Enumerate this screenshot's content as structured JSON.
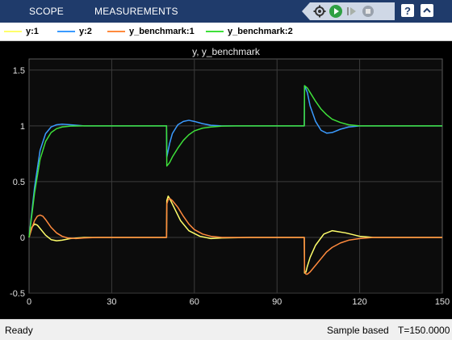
{
  "topbar": {
    "tabs": [
      {
        "label": "SCOPE"
      },
      {
        "label": "MEASUREMENTS"
      }
    ],
    "quick_access_icons": [
      "settings-gear-icon",
      "run-icon",
      "step-forward-icon",
      "stop-icon"
    ],
    "help_icons": [
      "help-icon",
      "expand-icon"
    ]
  },
  "legend": {
    "items": [
      {
        "label": "y:1",
        "color": "#ffff6b"
      },
      {
        "label": "y:2",
        "color": "#3b9bff"
      },
      {
        "label": "y_benchmark:1",
        "color": "#ff8a3d"
      },
      {
        "label": "y_benchmark:2",
        "color": "#3ee03a"
      }
    ]
  },
  "chart_data": {
    "type": "line",
    "title": "y, y_benchmark",
    "xlabel": "",
    "ylabel": "",
    "xlim": [
      0,
      150
    ],
    "ylim": [
      -0.5,
      1.6
    ],
    "xticks": [
      0,
      30,
      60,
      90,
      120,
      150
    ],
    "yticks": [
      -0.5,
      0,
      0.5,
      1,
      1.5
    ],
    "xtick_labels": [
      "0",
      "30",
      "60",
      "90",
      "120",
      "150"
    ],
    "ytick_labels": [
      "-0.5",
      "0",
      "0.5",
      "1",
      "1.5"
    ],
    "grid": true,
    "legend_position": "top",
    "series": [
      {
        "name": "y:1",
        "color": "#ffff6b",
        "x": [
          0,
          1,
          2,
          3,
          4,
          6,
          8,
          10,
          12,
          15,
          20,
          25,
          30,
          40,
          49.9,
          50,
          50.5,
          51,
          53,
          55,
          58,
          62,
          66,
          70,
          80,
          99.9,
          100,
          100.5,
          101,
          102,
          104,
          107,
          110,
          115,
          120,
          125,
          130,
          150
        ],
        "y": [
          0,
          0.09,
          0.12,
          0.11,
          0.08,
          0.02,
          -0.02,
          -0.03,
          -0.025,
          -0.01,
          0,
          0,
          0,
          0,
          0,
          0.33,
          0.37,
          0.35,
          0.25,
          0.15,
          0.06,
          0.01,
          -0.01,
          -0.005,
          0,
          0,
          -0.32,
          -0.31,
          -0.26,
          -0.18,
          -0.07,
          0.03,
          0.06,
          0.04,
          0.01,
          0,
          0,
          0
        ]
      },
      {
        "name": "y:2",
        "color": "#3b9bff",
        "x": [
          0,
          2,
          4,
          6,
          8,
          10,
          12,
          15,
          20,
          25,
          30,
          40,
          49.9,
          50,
          51,
          52,
          54,
          56,
          58,
          60,
          63,
          66,
          70,
          75,
          80,
          99.9,
          100,
          101,
          102,
          104,
          106,
          108,
          110,
          113,
          116,
          120,
          125,
          130,
          150
        ],
        "y": [
          0,
          0.45,
          0.78,
          0.93,
          0.99,
          1.01,
          1.015,
          1.01,
          1.0,
          1.0,
          1.0,
          1.0,
          1.0,
          0.72,
          0.84,
          0.93,
          1.01,
          1.04,
          1.05,
          1.04,
          1.02,
          1.005,
          1.0,
          1.0,
          1.0,
          1.0,
          1.36,
          1.3,
          1.18,
          1.04,
          0.96,
          0.935,
          0.94,
          0.97,
          0.99,
          1.0,
          1.0,
          1.0,
          1.0
        ]
      },
      {
        "name": "y_benchmark:1",
        "color": "#ff8a3d",
        "x": [
          0,
          1,
          2,
          3,
          4,
          5,
          6,
          8,
          10,
          12,
          14,
          17,
          20,
          25,
          30,
          49.9,
          50,
          50.5,
          51,
          52,
          54,
          56,
          58,
          60,
          63,
          66,
          70,
          80,
          99.9,
          100,
          100.5,
          101,
          102,
          104,
          106,
          108,
          110,
          113,
          116,
          120,
          125,
          130,
          150
        ],
        "y": [
          0,
          0.08,
          0.15,
          0.19,
          0.2,
          0.19,
          0.16,
          0.09,
          0.04,
          0.01,
          -0.005,
          -0.01,
          -0.005,
          0,
          0,
          0,
          0.3,
          0.34,
          0.35,
          0.33,
          0.27,
          0.19,
          0.12,
          0.07,
          0.03,
          0.01,
          0,
          0,
          0,
          -0.3,
          -0.33,
          -0.33,
          -0.31,
          -0.25,
          -0.19,
          -0.13,
          -0.09,
          -0.05,
          -0.025,
          -0.01,
          0,
          0,
          0
        ]
      },
      {
        "name": "y_benchmark:2",
        "color": "#3ee03a",
        "x": [
          0,
          2,
          4,
          6,
          8,
          10,
          12,
          15,
          20,
          25,
          30,
          40,
          49.9,
          50,
          51,
          52,
          54,
          56,
          58,
          60,
          63,
          66,
          70,
          75,
          80,
          99.9,
          100,
          101,
          102,
          104,
          106,
          108,
          110,
          113,
          116,
          120,
          125,
          130,
          150
        ],
        "y": [
          0,
          0.4,
          0.7,
          0.86,
          0.94,
          0.975,
          0.99,
          0.998,
          1.0,
          1.0,
          1.0,
          1.0,
          1.0,
          0.64,
          0.67,
          0.72,
          0.8,
          0.87,
          0.92,
          0.955,
          0.98,
          0.99,
          0.998,
          1.0,
          1.0,
          1.0,
          1.36,
          1.34,
          1.3,
          1.22,
          1.15,
          1.1,
          1.06,
          1.03,
          1.01,
          1.0,
          1.0,
          1.0,
          1.0
        ]
      }
    ]
  },
  "status": {
    "state": "Ready",
    "mode": "Sample based",
    "time": "T=150.0000"
  }
}
